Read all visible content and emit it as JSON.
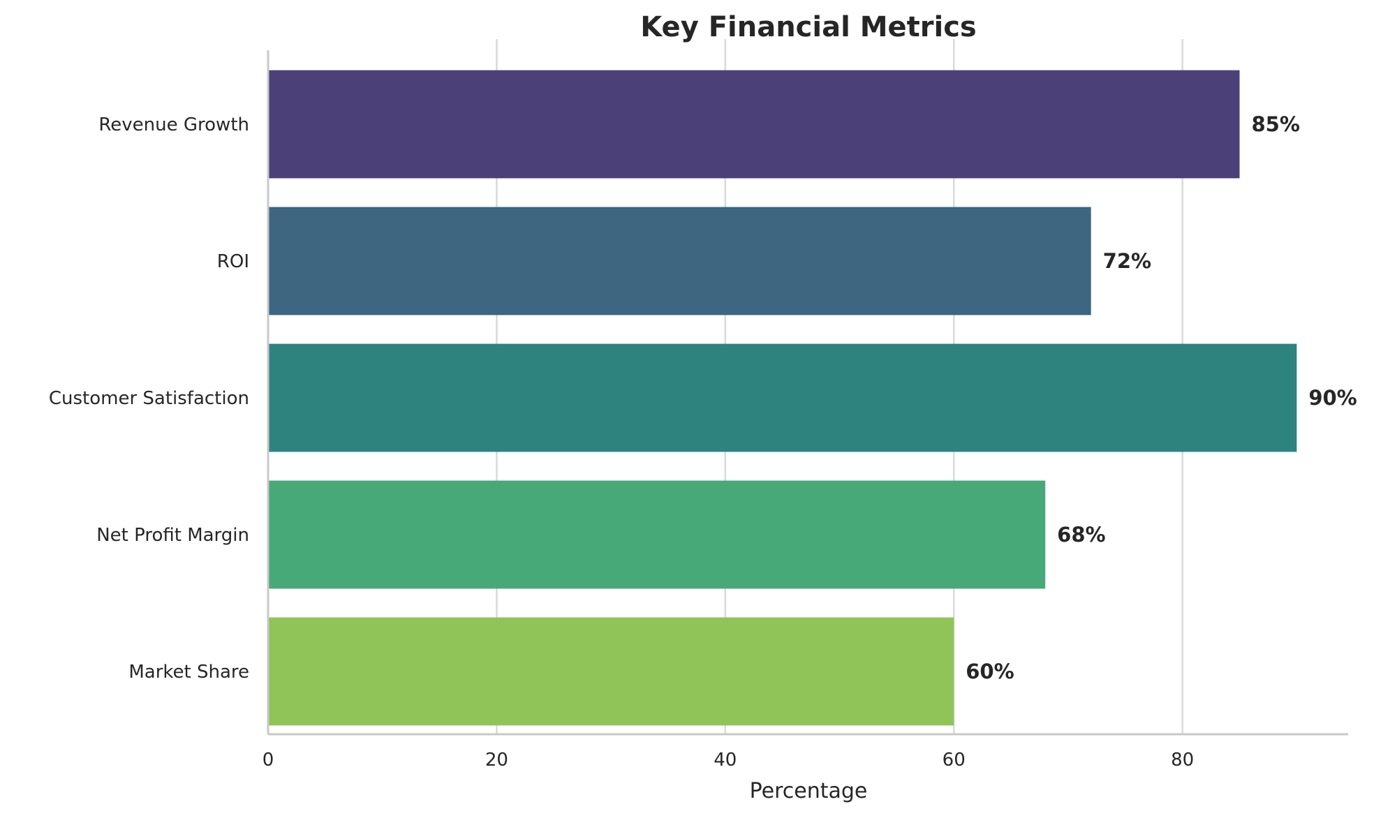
{
  "chart_data": {
    "type": "bar",
    "orientation": "horizontal",
    "title": "Key Financial Metrics",
    "xlabel": "Percentage",
    "ylabel": "",
    "categories": [
      "Revenue Growth",
      "ROI",
      "Customer Satisfaction",
      "Net Profit Margin",
      "Market Share"
    ],
    "values": [
      85,
      72,
      90,
      68,
      60
    ],
    "data_labels": [
      "85%",
      "72%",
      "90%",
      "68%",
      "60%"
    ],
    "colors": [
      "#4b4178",
      "#3e6681",
      "#2e837f",
      "#48a978",
      "#91c458"
    ],
    "xlim": [
      0,
      94.5
    ],
    "xticks": [
      0,
      20,
      40,
      60,
      80
    ],
    "xtick_labels": [
      "0",
      "20",
      "40",
      "60",
      "80"
    ],
    "grid": "vertical",
    "legend": "none"
  }
}
